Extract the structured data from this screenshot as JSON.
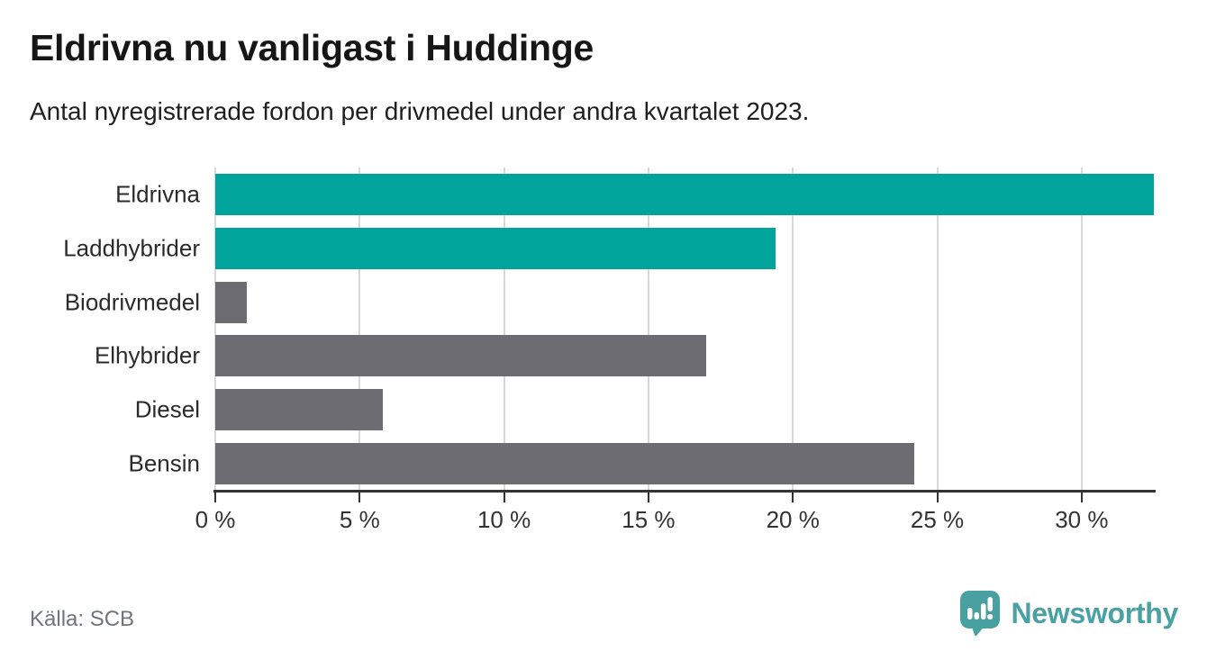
{
  "chart_data": {
    "type": "bar",
    "orientation": "horizontal",
    "title": "Eldrivna nu vanligast i Huddinge",
    "subtitle": "Antal nyregistrerade fordon per drivmedel under andra kvartalet 2023.",
    "categories": [
      "Eldrivna",
      "Laddhybrider",
      "Biodrivmedel",
      "Elhybrider",
      "Diesel",
      "Bensin"
    ],
    "values": [
      32.5,
      19.4,
      1.1,
      17.0,
      5.8,
      24.2
    ],
    "unit": "%",
    "bar_colors": [
      "#00a49a",
      "#00a49a",
      "#6c6c72",
      "#6c6c72",
      "#6c6c72",
      "#6c6c72"
    ],
    "highlight_categories": [
      "Eldrivna",
      "Laddhybrider"
    ],
    "xlim": [
      0,
      32.5
    ],
    "xticks": [
      0,
      5,
      10,
      15,
      20,
      25,
      30
    ],
    "xtick_labels": [
      "0 %",
      "5 %",
      "10 %",
      "15 %",
      "20 %",
      "25 %",
      "30 %"
    ],
    "grid": "vertical",
    "legend": "none"
  },
  "colors": {
    "highlight_bar": "#00a49a",
    "default_bar": "#6c6c72",
    "gridline": "#d9d9d9",
    "axis": "#333333",
    "brand": "#49a1a3"
  },
  "footer": {
    "source": "Källa: SCB",
    "brand": "Newsworthy",
    "brand_icon": "newsworthy-pin-bar-chart-icon"
  }
}
